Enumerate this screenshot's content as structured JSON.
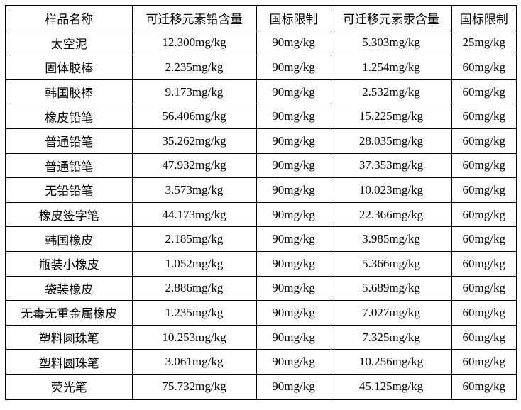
{
  "colors": {
    "border": "#000000",
    "text": "#000000",
    "background": "#ffffff"
  },
  "chart_data": {
    "type": "table",
    "columns": [
      "样品名称",
      "可迁移元素铅含量",
      "国标限制",
      "可迁移元素汞含量",
      "国标限制"
    ],
    "rows": [
      [
        "太空泥",
        "12.300mg/kg",
        "90mg/kg",
        "5.303mg/kg",
        "25mg/kg"
      ],
      [
        "固体胶棒",
        "2.235mg/kg",
        "90mg/kg",
        "1.254mg/kg",
        "60mg/kg"
      ],
      [
        "韩国胶棒",
        "9.173mg/kg",
        "90mg/kg",
        "2.532mg/kg",
        "60mg/kg"
      ],
      [
        "橡皮铅笔",
        "56.406mg/kg",
        "90mg/kg",
        "15.225mg/kg",
        "60mg/kg"
      ],
      [
        "普通铅笔",
        "35.262mg/kg",
        "90mg/kg",
        "28.035mg/kg",
        "60mg/kg"
      ],
      [
        "普通铅笔",
        "47.932mg/kg",
        "90mg/kg",
        "37.353mg/kg",
        "60mg/kg"
      ],
      [
        "无铅铅笔",
        "3.573mg/kg",
        "90mg/kg",
        "10.023mg/kg",
        "60mg/kg"
      ],
      [
        "橡皮签字笔",
        "44.173mg/kg",
        "90mg/kg",
        "22.366mg/kg",
        "60mg/kg"
      ],
      [
        "韩国橡皮",
        "2.185mg/kg",
        "90mg/kg",
        "3.985mg/kg",
        "60mg/kg"
      ],
      [
        "瓶装小橡皮",
        "1.052mg/kg",
        "90mg/kg",
        "5.366mg/kg",
        "60mg/kg"
      ],
      [
        "袋装橡皮",
        "2.886mg/kg",
        "90mg/kg",
        "5.689mg/kg",
        "60mg/kg"
      ],
      [
        "无毒无重金属橡皮",
        "1.235mg/kg",
        "90mg/kg",
        "7.027mg/kg",
        "60mg/kg"
      ],
      [
        "塑料圆珠笔",
        "10.253mg/kg",
        "90mg/kg",
        "7.325mg/kg",
        "60mg/kg"
      ],
      [
        "塑料圆珠笔",
        "3.061mg/kg",
        "90mg/kg",
        "10.256mg/kg",
        "60mg/kg"
      ],
      [
        "荧光笔",
        "75.732mg/kg",
        "90mg/kg",
        "45.125mg/kg",
        "60mg/kg"
      ]
    ]
  }
}
